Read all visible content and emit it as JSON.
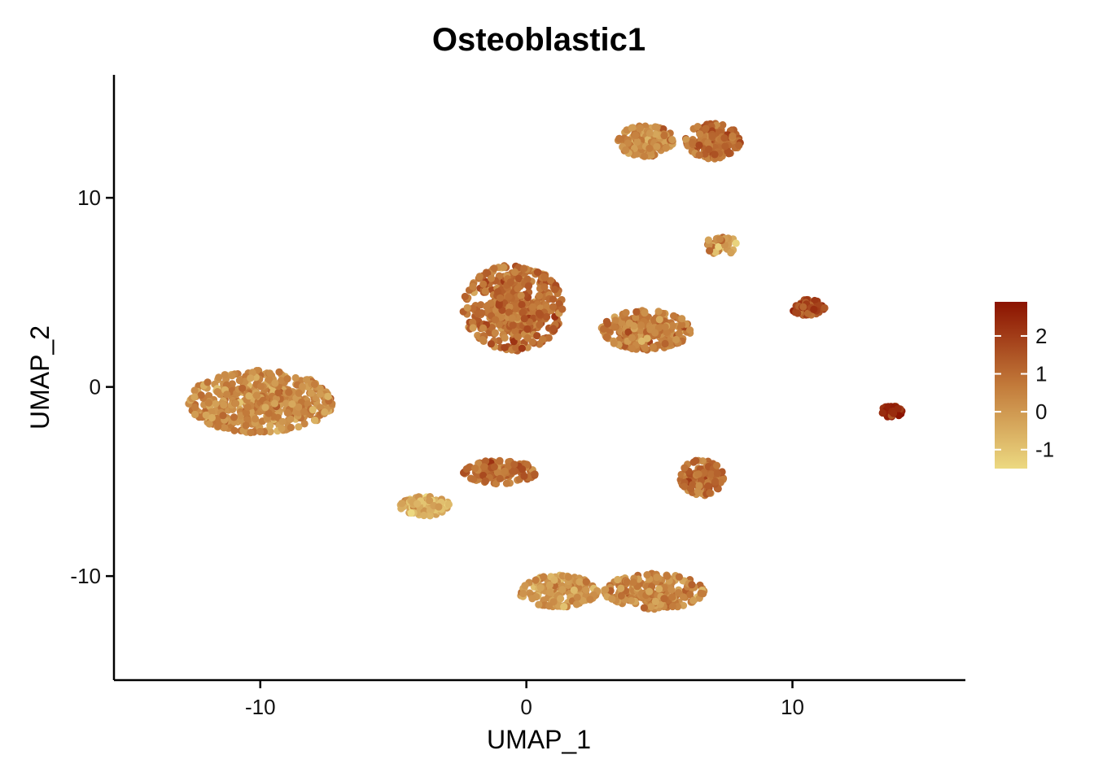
{
  "chart_data": {
    "type": "scatter",
    "title": "Osteoblastic1",
    "xlabel": "UMAP_1",
    "ylabel": "UMAP_2",
    "xlim": [
      -15.5,
      16.5
    ],
    "ylim": [
      -15.5,
      16.5
    ],
    "x_ticks": [
      -10,
      0,
      10
    ],
    "y_ticks": [
      -10,
      0,
      10
    ],
    "x_tick_labels": [
      "-10",
      "0",
      "10"
    ],
    "y_tick_labels": [
      "-10",
      "0",
      "10"
    ],
    "grid": false,
    "legend": {
      "placement": "right",
      "type": "colorbar",
      "range": [
        -1.5,
        2.9
      ],
      "ticks": [
        2,
        1,
        0,
        -1
      ],
      "tick_labels": [
        "2",
        "1",
        "0",
        "-1"
      ]
    },
    "color_scale": {
      "low": "#ecd981",
      "mid": "#c27a3a",
      "high": "#8b1200"
    },
    "clusters": [
      {
        "name": "c1",
        "center": [
          -10.0,
          -0.8
        ],
        "spread": [
          2.6,
          1.6
        ],
        "mean_value": 0.3,
        "points": 520
      },
      {
        "name": "c2",
        "center": [
          -0.5,
          4.2
        ],
        "spread": [
          1.8,
          2.2
        ],
        "mean_value": 0.9,
        "points": 480
      },
      {
        "name": "c3",
        "center": [
          4.5,
          3.0
        ],
        "spread": [
          1.6,
          1.0
        ],
        "mean_value": 0.6,
        "points": 250
      },
      {
        "name": "c4",
        "center": [
          4.5,
          13.0
        ],
        "spread": [
          1.0,
          0.8
        ],
        "mean_value": 0.3,
        "points": 170
      },
      {
        "name": "c5",
        "center": [
          7.0,
          13.0
        ],
        "spread": [
          1.0,
          0.9
        ],
        "mean_value": 1.0,
        "points": 160
      },
      {
        "name": "c6",
        "center": [
          7.3,
          7.5
        ],
        "spread": [
          0.6,
          0.5
        ],
        "mean_value": 0.0,
        "points": 40
      },
      {
        "name": "c7",
        "center": [
          10.6,
          4.2
        ],
        "spread": [
          0.6,
          0.4
        ],
        "mean_value": 1.8,
        "points": 70
      },
      {
        "name": "c8",
        "center": [
          13.7,
          -1.3
        ],
        "spread": [
          0.4,
          0.3
        ],
        "mean_value": 2.5,
        "points": 50
      },
      {
        "name": "c9",
        "center": [
          6.6,
          -4.8
        ],
        "spread": [
          0.8,
          0.9
        ],
        "mean_value": 0.9,
        "points": 120
      },
      {
        "name": "c10",
        "center": [
          -1.0,
          -4.5
        ],
        "spread": [
          1.3,
          0.6
        ],
        "mean_value": 1.0,
        "points": 140
      },
      {
        "name": "c11",
        "center": [
          -3.8,
          -6.3
        ],
        "spread": [
          0.9,
          0.5
        ],
        "mean_value": -0.6,
        "points": 100
      },
      {
        "name": "c12",
        "center": [
          1.2,
          -10.8
        ],
        "spread": [
          1.4,
          0.8
        ],
        "mean_value": 0.0,
        "points": 170
      },
      {
        "name": "c13",
        "center": [
          4.8,
          -10.8
        ],
        "spread": [
          1.8,
          0.9
        ],
        "mean_value": 0.4,
        "points": 240
      }
    ]
  }
}
